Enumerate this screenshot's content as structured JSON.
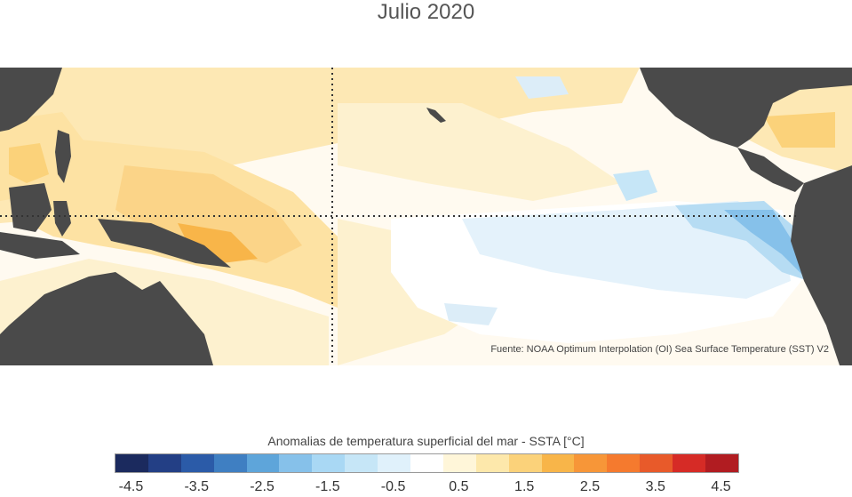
{
  "title": "Julio 2020",
  "source": "Fuente: NOAA Optimum Interpolation (OI) Sea Surface Temperature (SST) V2",
  "legend": {
    "title": "Anomalias de temperatura superficial del mar - SSTA  [°C]",
    "colors": [
      "#1b2a5e",
      "#233f85",
      "#2b5ba8",
      "#3f7fc2",
      "#5ea5da",
      "#86c1ea",
      "#a9d8f4",
      "#c6e6f7",
      "#e0f1fb",
      "#ffffff",
      "#fff6d9",
      "#fde8ab",
      "#fbd27a",
      "#f8b549",
      "#f79638",
      "#f57a2e",
      "#e85a2a",
      "#d62b26",
      "#b11c21"
    ],
    "tick_labels": [
      "-4.5",
      "-3.5",
      "-2.5",
      "-1.5",
      "-0.5",
      "0.5",
      "1.5",
      "2.5",
      "3.5",
      "4.5"
    ]
  },
  "colors": {
    "land": "#4a4a4a",
    "ocean_neutral": "#ffffff",
    "warm_light": "#fdf3d6",
    "warm_mid": "#fde2a3",
    "warm_strong": "#fbcf7a",
    "warm_peak": "#f8b549",
    "cool_light": "#dcedf8",
    "cool_mid": "#b6dcf3",
    "cool_strong": "#86c1ea"
  }
}
